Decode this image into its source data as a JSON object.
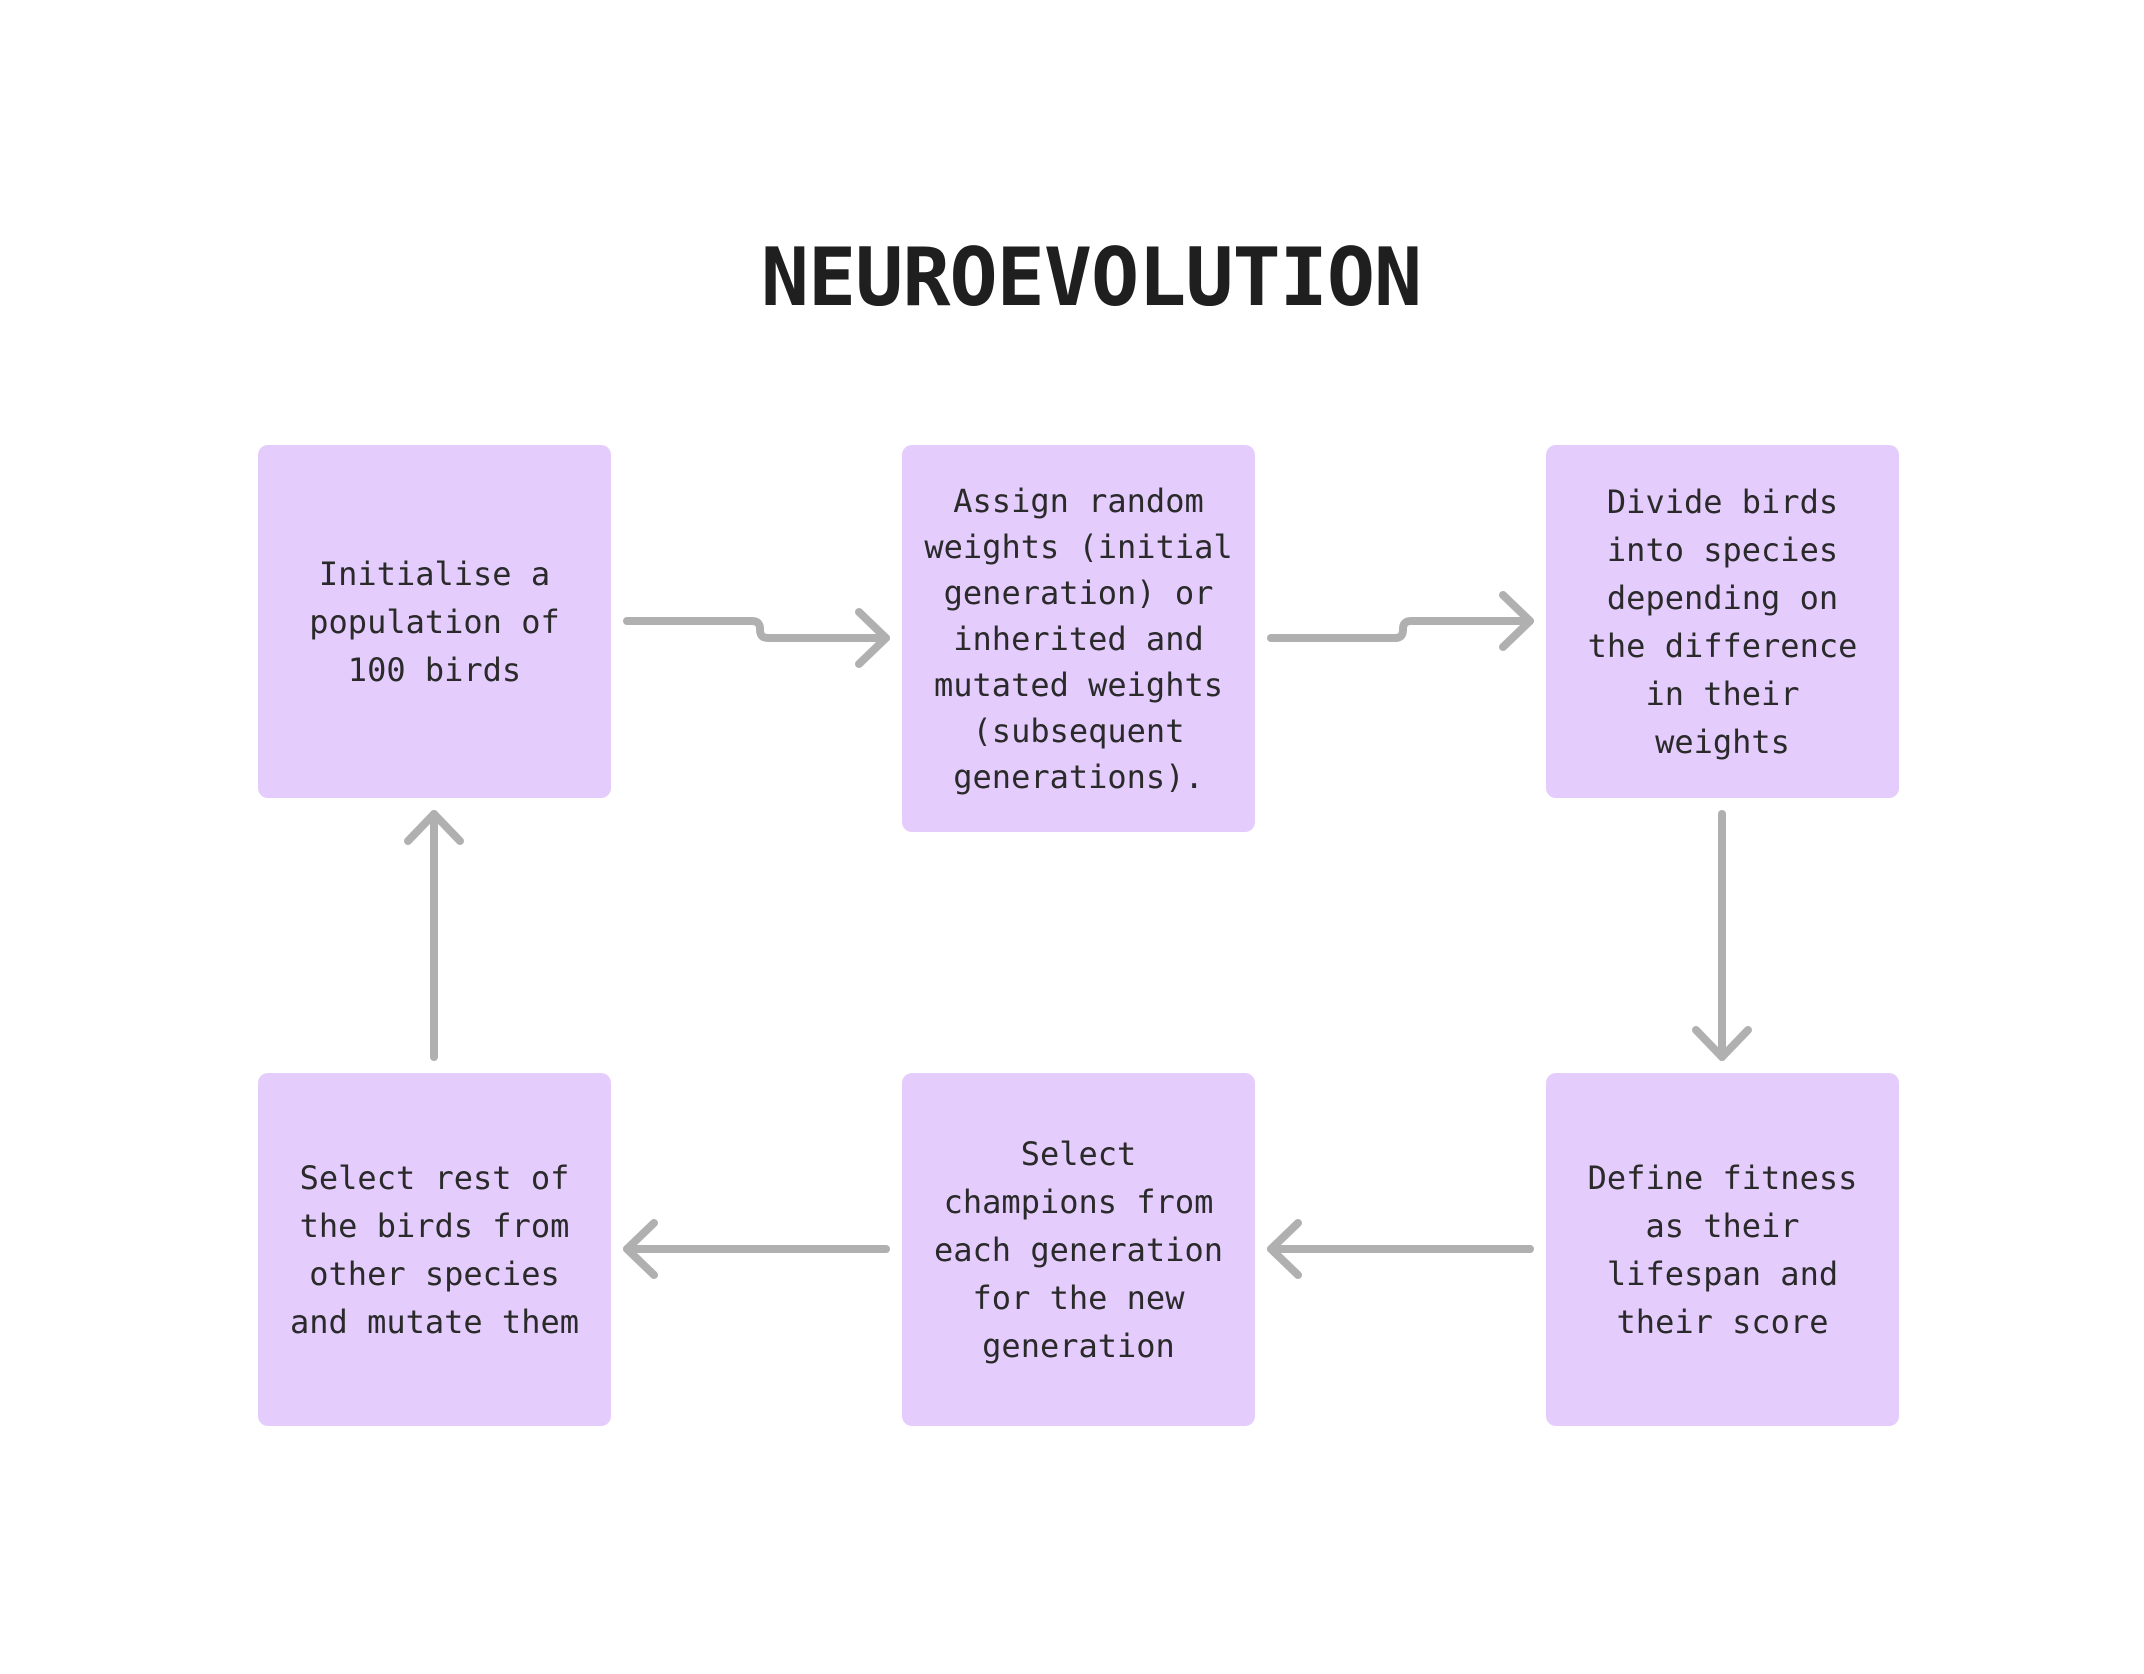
{
  "title": "NEUROEVOLUTION",
  "steps": [
    {
      "id": "b1",
      "text": "Initialise a\npopulation of\n100 birds"
    },
    {
      "id": "b2",
      "text": "Assign random\nweights (initial\ngeneration) or\ninherited and\nmutated weights\n(subsequent\ngenerations)."
    },
    {
      "id": "b3",
      "text": "Divide birds\ninto species\ndepending on\nthe difference\nin their\nweights"
    },
    {
      "id": "b4",
      "text": "Define fitness\nas their\nlifespan and\ntheir score"
    },
    {
      "id": "b5",
      "text": "Select\nchampions from\neach generation\nfor the new\ngeneration"
    },
    {
      "id": "b6",
      "text": "Select rest of\nthe birds from\nother species\nand mutate them"
    }
  ],
  "connections": [
    {
      "from": "Initialise a population of 100 birds",
      "to": "Assign random weights"
    },
    {
      "from": "Assign random weights",
      "to": "Divide birds into species"
    },
    {
      "from": "Divide birds into species",
      "to": "Define fitness"
    },
    {
      "from": "Define fitness",
      "to": "Select champions"
    },
    {
      "from": "Select champions",
      "to": "Select rest of the birds"
    },
    {
      "from": "Select rest of the birds",
      "to": "Initialise a population of 100 birds"
    }
  ],
  "colors": {
    "box_fill": "#e4ccfd",
    "arrow": "#b0b0b0",
    "text": "#2a2a2a",
    "title": "#1f1f1f"
  }
}
